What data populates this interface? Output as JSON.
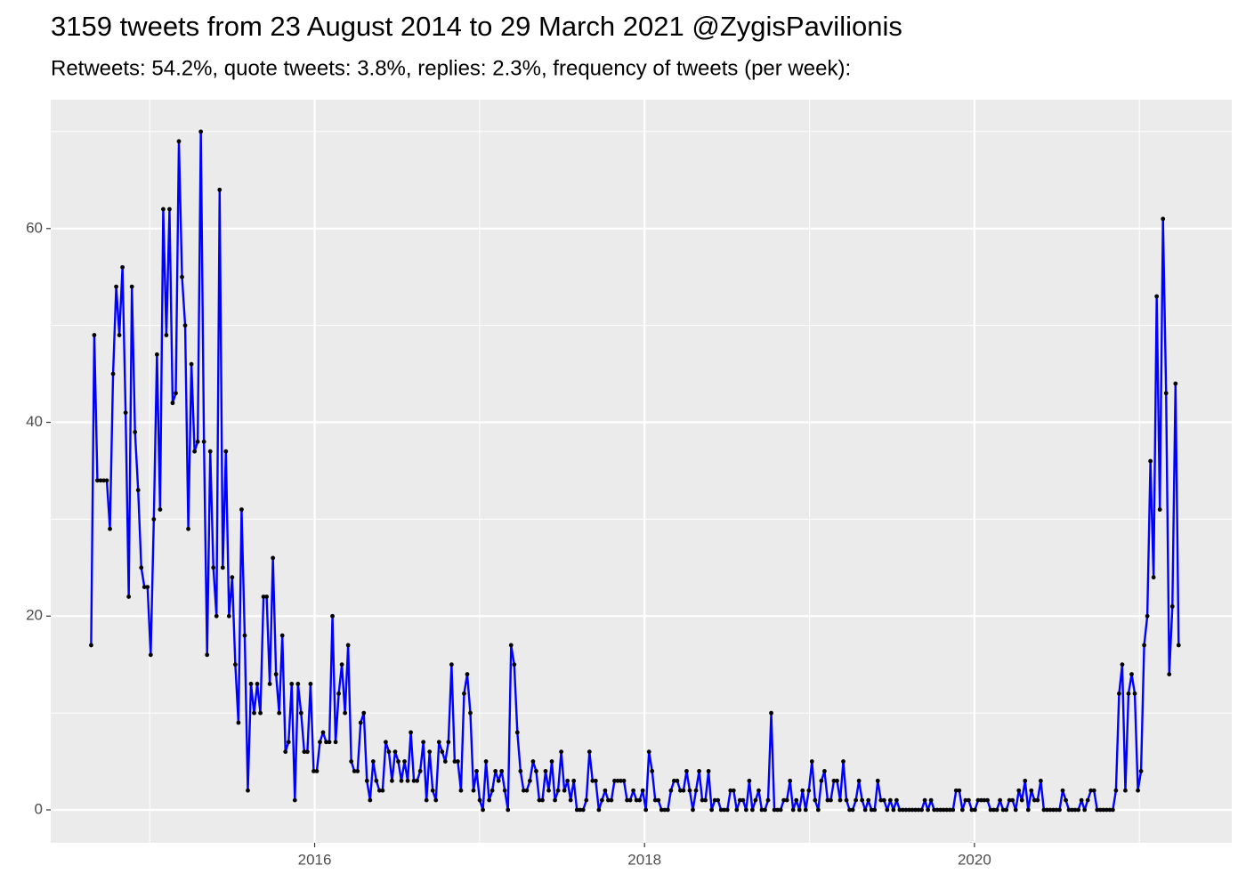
{
  "chart_data": {
    "type": "line",
    "title": "3159 tweets from 23 August 2014 to 29 March 2021 @ZygisPavilionis",
    "subtitle": "Retweets: 54.2%, quote tweets: 3.8%, replies: 2.3%, frequency of tweets (per week):",
    "xlim": [
      2014.4,
      2021.56
    ],
    "ylim": [
      -3.4,
      73.3
    ],
    "xticks": [
      2016,
      2018,
      2020
    ],
    "yticks": [
      0,
      20,
      40,
      60
    ],
    "x_minor_grid": [
      2015,
      2017,
      2019,
      2021
    ],
    "y_minor_grid": [
      10,
      30,
      50,
      70
    ],
    "grid": true,
    "x": [
      2014.645,
      2014.664,
      2014.683,
      2014.702,
      2014.721,
      2014.74,
      2014.759,
      2014.778,
      2014.797,
      2014.816,
      2014.835,
      2014.854,
      2014.873,
      2014.892,
      2014.911,
      2014.93,
      2014.949,
      2014.968,
      2014.987,
      2015.006,
      2015.025,
      2015.044,
      2015.063,
      2015.082,
      2015.101,
      2015.12,
      2015.139,
      2015.158,
      2015.177,
      2015.196,
      2015.215,
      2015.234,
      2015.253,
      2015.272,
      2015.291,
      2015.31,
      2015.329,
      2015.348,
      2015.367,
      2015.386,
      2015.405,
      2015.424,
      2015.443,
      2015.462,
      2015.481,
      2015.5,
      2015.519,
      2015.538,
      2015.557,
      2015.576,
      2015.595,
      2015.614,
      2015.633,
      2015.652,
      2015.671,
      2015.69,
      2015.709,
      2015.728,
      2015.747,
      2015.766,
      2015.785,
      2015.804,
      2015.823,
      2015.842,
      2015.861,
      2015.88,
      2015.899,
      2015.918,
      2015.937,
      2015.956,
      2015.975,
      2015.994,
      2016.013,
      2016.032,
      2016.051,
      2016.07,
      2016.089,
      2016.108,
      2016.127,
      2016.146,
      2016.165,
      2016.184,
      2016.203,
      2016.222,
      2016.241,
      2016.26,
      2016.279,
      2016.298,
      2016.317,
      2016.336,
      2016.355,
      2016.374,
      2016.393,
      2016.412,
      2016.431,
      2016.45,
      2016.469,
      2016.488,
      2016.507,
      2016.526,
      2016.545,
      2016.564,
      2016.583,
      2016.602,
      2016.621,
      2016.64,
      2016.659,
      2016.678,
      2016.697,
      2016.716,
      2016.735,
      2016.754,
      2016.773,
      2016.792,
      2016.811,
      2016.83,
      2016.849,
      2016.868,
      2016.887,
      2016.906,
      2016.925,
      2016.944,
      2016.963,
      2016.982,
      2017.001,
      2017.02,
      2017.039,
      2017.058,
      2017.077,
      2017.096,
      2017.115,
      2017.134,
      2017.153,
      2017.172,
      2017.191,
      2017.21,
      2017.229,
      2017.248,
      2017.267,
      2017.286,
      2017.305,
      2017.324,
      2017.343,
      2017.362,
      2017.381,
      2017.4,
      2017.419,
      2017.438,
      2017.457,
      2017.476,
      2017.495,
      2017.514,
      2017.533,
      2017.552,
      2017.571,
      2017.59,
      2017.609,
      2017.628,
      2017.647,
      2017.666,
      2017.685,
      2017.704,
      2017.723,
      2017.742,
      2017.761,
      2017.78,
      2017.799,
      2017.818,
      2017.837,
      2017.856,
      2017.875,
      2017.894,
      2017.913,
      2017.932,
      2017.951,
      2017.97,
      2017.989,
      2018.008,
      2018.027,
      2018.046,
      2018.065,
      2018.084,
      2018.103,
      2018.122,
      2018.141,
      2018.16,
      2018.179,
      2018.198,
      2018.217,
      2018.236,
      2018.255,
      2018.274,
      2018.293,
      2018.312,
      2018.331,
      2018.35,
      2018.369,
      2018.388,
      2018.407,
      2018.426,
      2018.445,
      2018.464,
      2018.483,
      2018.502,
      2018.521,
      2018.54,
      2018.559,
      2018.578,
      2018.597,
      2018.616,
      2018.635,
      2018.654,
      2018.673,
      2018.692,
      2018.711,
      2018.73,
      2018.749,
      2018.768,
      2018.787,
      2018.806,
      2018.825,
      2018.844,
      2018.863,
      2018.882,
      2018.901,
      2018.92,
      2018.939,
      2018.958,
      2018.977,
      2018.996,
      2019.015,
      2019.034,
      2019.053,
      2019.072,
      2019.091,
      2019.11,
      2019.129,
      2019.148,
      2019.167,
      2019.186,
      2019.205,
      2019.224,
      2019.243,
      2019.262,
      2019.281,
      2019.3,
      2019.319,
      2019.338,
      2019.357,
      2019.376,
      2019.395,
      2019.414,
      2019.433,
      2019.452,
      2019.471,
      2019.49,
      2019.509,
      2019.528,
      2019.547,
      2019.566,
      2019.585,
      2019.604,
      2019.623,
      2019.642,
      2019.661,
      2019.68,
      2019.699,
      2019.718,
      2019.737,
      2019.756,
      2019.775,
      2019.794,
      2019.813,
      2019.832,
      2019.851,
      2019.87,
      2019.889,
      2019.908,
      2019.927,
      2019.946,
      2019.965,
      2019.984,
      2020.003,
      2020.022,
      2020.041,
      2020.06,
      2020.079,
      2020.098,
      2020.117,
      2020.136,
      2020.155,
      2020.174,
      2020.193,
      2020.212,
      2020.231,
      2020.25,
      2020.269,
      2020.288,
      2020.307,
      2020.326,
      2020.345,
      2020.364,
      2020.383,
      2020.402,
      2020.421,
      2020.44,
      2020.459,
      2020.478,
      2020.497,
      2020.516,
      2020.535,
      2020.554,
      2020.573,
      2020.592,
      2020.611,
      2020.63,
      2020.649,
      2020.668,
      2020.687,
      2020.706,
      2020.725,
      2020.744,
      2020.763,
      2020.782,
      2020.801,
      2020.82,
      2020.839,
      2020.858,
      2020.877,
      2020.896,
      2020.915,
      2020.934,
      2020.953,
      2020.972,
      2020.991,
      2021.01,
      2021.029,
      2021.048,
      2021.067,
      2021.086,
      2021.105,
      2021.124,
      2021.143,
      2021.162,
      2021.181,
      2021.2,
      2021.219,
      2021.238
    ],
    "series": [
      {
        "color": "#0000ff",
        "point_color": "#000000",
        "values": [
          17,
          49,
          34,
          34,
          34,
          34,
          29,
          45,
          54,
          49,
          56,
          41,
          22,
          54,
          39,
          33,
          25,
          23,
          23,
          16,
          30,
          47,
          31,
          62,
          49,
          62,
          42,
          43,
          69,
          55,
          50,
          29,
          46,
          37,
          38,
          70,
          38,
          16,
          37,
          25,
          20,
          64,
          25,
          37,
          20,
          24,
          15,
          9,
          31,
          18,
          2,
          13,
          10,
          13,
          10,
          22,
          22,
          13,
          26,
          14,
          10,
          18,
          6,
          7,
          13,
          1,
          13,
          10,
          6,
          6,
          13,
          4,
          4,
          7,
          8,
          7,
          7,
          20,
          7,
          12,
          15,
          10,
          17,
          5,
          4,
          4,
          9,
          10,
          3,
          1,
          5,
          3,
          2,
          2,
          7,
          6,
          3,
          6,
          5,
          3,
          5,
          3,
          8,
          3,
          3,
          4,
          7,
          1,
          6,
          2,
          1,
          7,
          6,
          5,
          7,
          15,
          5,
          5,
          2,
          12,
          14,
          10,
          2,
          4,
          1,
          0,
          5,
          1,
          2,
          4,
          3,
          4,
          2,
          0,
          17,
          15,
          8,
          4,
          2,
          2,
          3,
          5,
          4,
          1,
          1,
          4,
          2,
          5,
          1,
          2,
          6,
          2,
          3,
          1,
          3,
          0,
          0,
          0,
          1,
          6,
          3,
          3,
          0,
          1,
          2,
          1,
          1,
          3,
          3,
          3,
          3,
          1,
          1,
          2,
          1,
          1,
          2,
          0,
          6,
          4,
          1,
          1,
          0,
          0,
          0,
          2,
          3,
          3,
          2,
          2,
          4,
          2,
          0,
          2,
          4,
          1,
          1,
          4,
          0,
          1,
          1,
          0,
          0,
          0,
          2,
          2,
          0,
          1,
          1,
          0,
          3,
          0,
          1,
          2,
          0,
          0,
          1,
          10,
          0,
          0,
          0,
          1,
          1,
          3,
          0,
          1,
          0,
          2,
          0,
          2,
          5,
          1,
          0,
          3,
          4,
          1,
          1,
          3,
          3,
          1,
          5,
          1,
          0,
          0,
          1,
          3,
          1,
          0,
          1,
          0,
          0,
          3,
          1,
          1,
          0,
          1,
          0,
          1,
          0,
          0,
          0,
          0,
          0,
          0,
          0,
          0,
          1,
          0,
          1,
          0,
          0,
          0,
          0,
          0,
          0,
          0,
          2,
          2,
          0,
          1,
          1,
          0,
          0,
          1,
          1,
          1,
          1,
          0,
          0,
          0,
          1,
          0,
          0,
          1,
          1,
          0,
          2,
          1,
          3,
          0,
          2,
          1,
          1,
          3,
          0,
          0,
          0,
          0,
          0,
          0,
          2,
          1,
          0,
          0,
          0,
          0,
          1,
          0,
          1,
          2,
          2,
          0,
          0,
          0,
          0,
          0,
          0,
          2,
          12,
          15,
          2,
          12,
          14,
          12,
          2,
          4,
          17,
          20,
          36,
          24,
          53,
          31,
          61,
          43,
          14,
          21,
          44,
          17
        ]
      }
    ]
  }
}
